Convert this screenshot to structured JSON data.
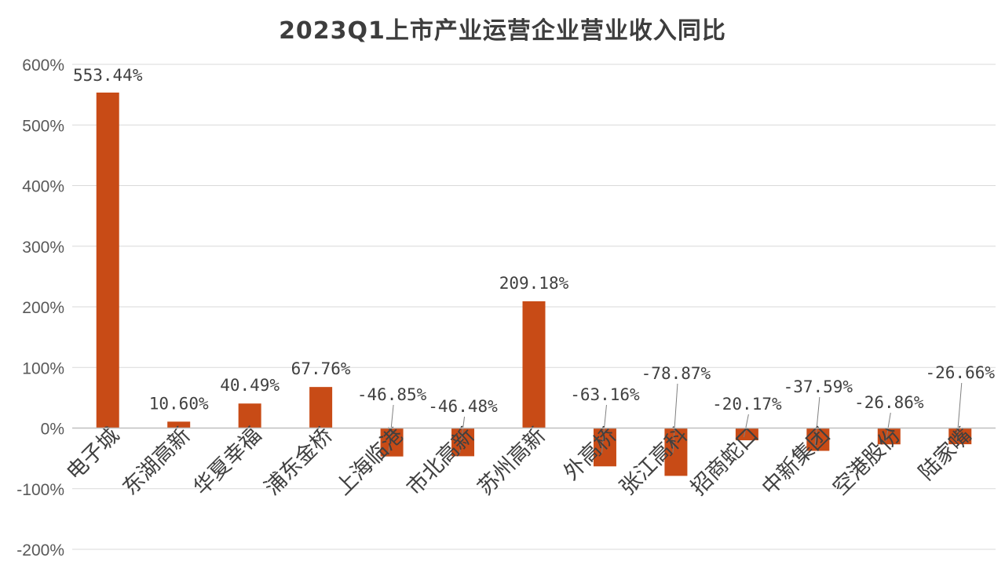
{
  "chart_data": {
    "type": "bar",
    "title": "2023Q1上市产业运营企业营业收入同比",
    "categories": [
      "电子城",
      "东湖高新",
      "华夏幸福",
      "浦东金桥",
      "上海临港",
      "市北高新",
      "苏州高新",
      "外高桥",
      "张江高科",
      "招商蛇口",
      "中新集团",
      "空港股份",
      "陆家嘴"
    ],
    "values": [
      553.44,
      10.6,
      40.49,
      67.76,
      -46.85,
      -46.48,
      209.18,
      -63.16,
      -78.87,
      -20.17,
      -37.59,
      -26.86,
      -26.66
    ],
    "data_labels": [
      "553.44%",
      "10.60%",
      "40.49%",
      "67.76%",
      "-46.85%",
      "-46.48%",
      "209.18%",
      "-63.16%",
      "-78.87%",
      "-20.17%",
      "-37.59%",
      "-26.86%",
      "-26.66%"
    ],
    "ylim": [
      -200,
      600
    ],
    "yticks": [
      600,
      500,
      400,
      300,
      200,
      100,
      0,
      -100,
      -200
    ],
    "ytick_labels": [
      "600%",
      "500%",
      "400%",
      "300%",
      "200%",
      "100%",
      "0%",
      "-100%",
      "-200%"
    ],
    "xlabel": "",
    "ylabel": "",
    "grid": true,
    "legend": "none",
    "bar_color": "#c84b16"
  }
}
